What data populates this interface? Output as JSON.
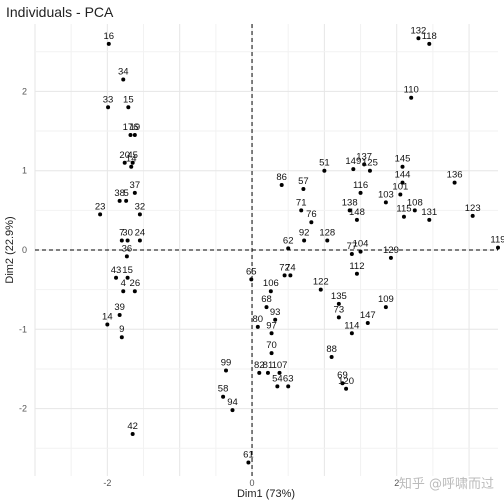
{
  "chart_data": {
    "type": "scatter",
    "title": "Individuals - PCA",
    "xlabel": "Dim1 (73%)",
    "ylabel": "Dim2 (22.9%)",
    "xlim": [
      -3.0,
      3.4
    ],
    "ylim": [
      -2.85,
      2.85
    ],
    "x_ticks": [
      -2,
      0,
      2
    ],
    "y_ticks": [
      -2,
      -1,
      0,
      1,
      2
    ],
    "grid": true,
    "reference_lines": {
      "x": 0,
      "y": 0,
      "style": "dashed"
    },
    "points": [
      {
        "label": "16",
        "x": -1.98,
        "y": 2.6
      },
      {
        "label": "34",
        "x": -1.78,
        "y": 2.15
      },
      {
        "label": "33",
        "x": -1.99,
        "y": 1.8
      },
      {
        "label": "15",
        "x": -1.71,
        "y": 1.8
      },
      {
        "label": "176",
        "x": -1.68,
        "y": 1.45
      },
      {
        "label": "19",
        "x": -1.62,
        "y": 1.45
      },
      {
        "label": "20",
        "x": -1.76,
        "y": 1.1
      },
      {
        "label": "45",
        "x": -1.65,
        "y": 1.1
      },
      {
        "label": "14",
        "x": -1.67,
        "y": 1.05
      },
      {
        "label": "37",
        "x": -1.62,
        "y": 0.72
      },
      {
        "label": "38",
        "x": -1.83,
        "y": 0.62
      },
      {
        "label": "5",
        "x": -1.74,
        "y": 0.62
      },
      {
        "label": "23",
        "x": -2.1,
        "y": 0.45
      },
      {
        "label": "32",
        "x": -1.55,
        "y": 0.45
      },
      {
        "label": "7",
        "x": -1.8,
        "y": 0.12
      },
      {
        "label": "30",
        "x": -1.72,
        "y": 0.12
      },
      {
        "label": "24",
        "x": -1.55,
        "y": 0.12
      },
      {
        "label": "36",
        "x": -1.73,
        "y": -0.08
      },
      {
        "label": "43",
        "x": -1.88,
        "y": -0.35
      },
      {
        "label": "15",
        "x": -1.72,
        "y": -0.35
      },
      {
        "label": "26",
        "x": -1.62,
        "y": -0.52
      },
      {
        "label": "4",
        "x": -1.78,
        "y": -0.52
      },
      {
        "label": "39",
        "x": -1.83,
        "y": -0.82
      },
      {
        "label": "14",
        "x": -2.0,
        "y": -0.94
      },
      {
        "label": "9",
        "x": -1.8,
        "y": -1.1
      },
      {
        "label": "42",
        "x": -1.65,
        "y": -2.32
      },
      {
        "label": "99",
        "x": -0.36,
        "y": -1.52
      },
      {
        "label": "58",
        "x": -0.4,
        "y": -1.85
      },
      {
        "label": "94",
        "x": -0.27,
        "y": -2.02
      },
      {
        "label": "61",
        "x": -0.05,
        "y": -2.68
      },
      {
        "label": "65",
        "x": -0.01,
        "y": -0.37
      },
      {
        "label": "86",
        "x": 0.41,
        "y": 0.82
      },
      {
        "label": "57",
        "x": 0.71,
        "y": 0.77
      },
      {
        "label": "51",
        "x": 1.0,
        "y": 1.0
      },
      {
        "label": "149",
        "x": 1.4,
        "y": 1.02
      },
      {
        "label": "137",
        "x": 1.55,
        "y": 1.08
      },
      {
        "label": "125",
        "x": 1.63,
        "y": 1.0
      },
      {
        "label": "145",
        "x": 2.08,
        "y": 1.05
      },
      {
        "label": "132",
        "x": 2.3,
        "y": 2.67
      },
      {
        "label": "118",
        "x": 2.45,
        "y": 2.6
      },
      {
        "label": "110",
        "x": 2.2,
        "y": 1.92
      },
      {
        "label": "136",
        "x": 2.8,
        "y": 0.85
      },
      {
        "label": "123",
        "x": 3.05,
        "y": 0.43
      },
      {
        "label": "119",
        "x": 3.4,
        "y": 0.03
      },
      {
        "label": "103",
        "x": 1.85,
        "y": 0.6
      },
      {
        "label": "108",
        "x": 2.25,
        "y": 0.5
      },
      {
        "label": "131",
        "x": 2.45,
        "y": 0.38
      },
      {
        "label": "109",
        "x": 1.85,
        "y": -0.72
      },
      {
        "label": "147",
        "x": 1.6,
        "y": -0.92
      },
      {
        "label": "114",
        "x": 1.38,
        "y": -1.05
      },
      {
        "label": "88",
        "x": 1.1,
        "y": -1.35
      },
      {
        "label": "69",
        "x": 1.25,
        "y": -1.68
      },
      {
        "label": "120",
        "x": 1.3,
        "y": -1.75
      },
      {
        "label": "63",
        "x": 0.5,
        "y": -1.72
      },
      {
        "label": "54",
        "x": 0.35,
        "y": -1.72
      },
      {
        "label": "107",
        "x": 0.38,
        "y": -1.55
      },
      {
        "label": "81",
        "x": 0.22,
        "y": -1.55
      },
      {
        "label": "82",
        "x": 0.1,
        "y": -1.55
      },
      {
        "label": "70",
        "x": 0.27,
        "y": -1.3
      },
      {
        "label": "97",
        "x": 0.27,
        "y": -1.05
      },
      {
        "label": "80",
        "x": 0.08,
        "y": -0.97
      },
      {
        "label": "93",
        "x": 0.32,
        "y": -0.88
      },
      {
        "label": "68",
        "x": 0.2,
        "y": -0.72
      },
      {
        "label": "106",
        "x": 0.26,
        "y": -0.52
      },
      {
        "label": "72",
        "x": 0.45,
        "y": -0.32
      },
      {
        "label": "74",
        "x": 0.53,
        "y": -0.32
      },
      {
        "label": "62",
        "x": 0.5,
        "y": 0.02
      },
      {
        "label": "92",
        "x": 0.72,
        "y": 0.12
      },
      {
        "label": "128",
        "x": 1.04,
        "y": 0.12
      },
      {
        "label": "77",
        "x": 1.38,
        "y": -0.05
      },
      {
        "label": "104",
        "x": 1.5,
        "y": -0.02
      },
      {
        "label": "129",
        "x": 1.92,
        "y": -0.1
      },
      {
        "label": "112",
        "x": 1.45,
        "y": -0.3
      },
      {
        "label": "122",
        "x": 0.95,
        "y": -0.5
      },
      {
        "label": "135",
        "x": 1.2,
        "y": -0.68
      },
      {
        "label": "73",
        "x": 1.2,
        "y": -0.85
      },
      {
        "label": "76",
        "x": 0.82,
        "y": 0.35
      },
      {
        "label": "71",
        "x": 0.68,
        "y": 0.5
      },
      {
        "label": "148",
        "x": 1.45,
        "y": 0.38
      },
      {
        "label": "138",
        "x": 1.35,
        "y": 0.5
      },
      {
        "label": "116",
        "x": 1.5,
        "y": 0.72
      },
      {
        "label": "101",
        "x": 2.05,
        "y": 0.7
      },
      {
        "label": "115",
        "x": 2.1,
        "y": 0.42
      },
      {
        "label": "144",
        "x": 2.08,
        "y": 0.85
      }
    ]
  },
  "watermark": "知乎 @呼啸而过"
}
